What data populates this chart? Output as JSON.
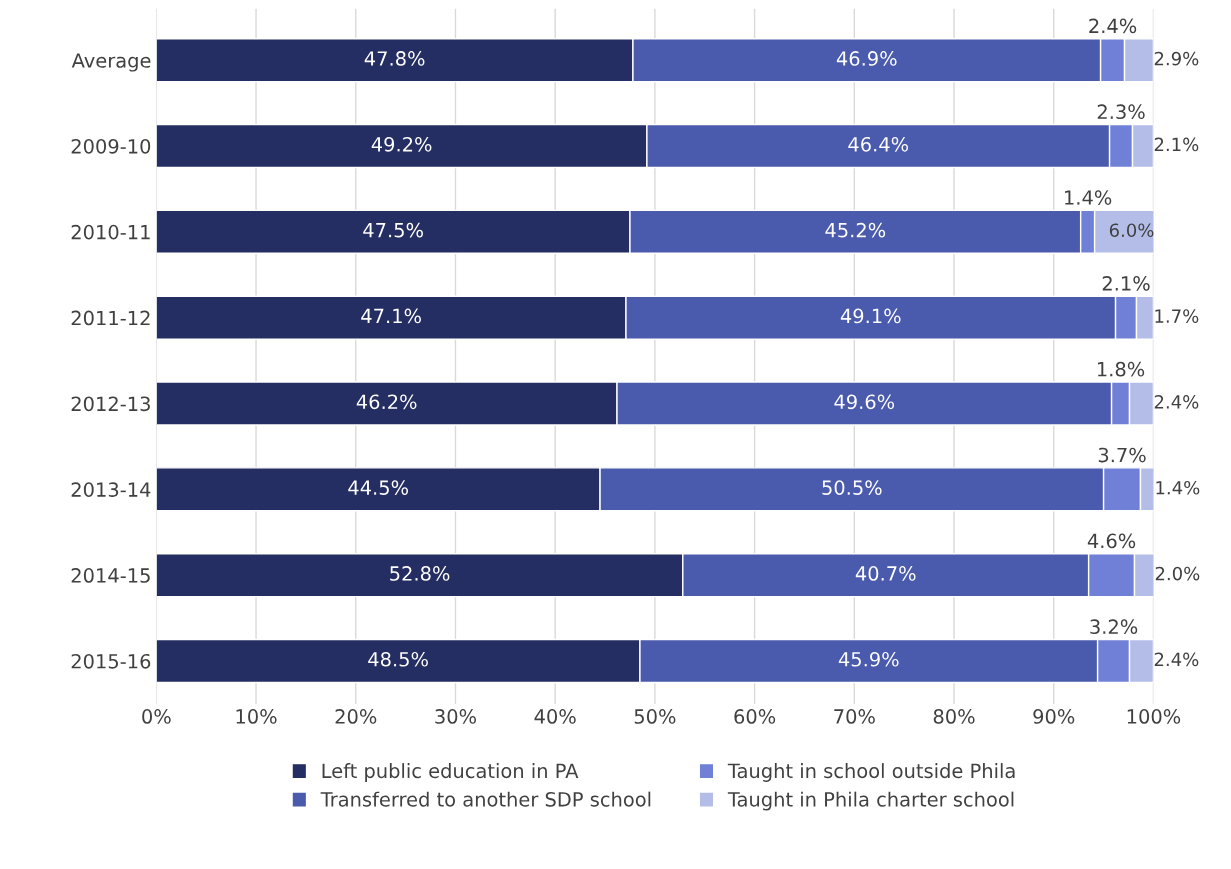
{
  "chart_data": {
    "type": "bar",
    "orientation": "horizontal",
    "stacked": true,
    "categories": [
      "Average",
      "2009-10",
      "2010-11",
      "2011-12",
      "2012-13",
      "2013-14",
      "2014-15",
      "2015-16"
    ],
    "series": [
      {
        "name": "Left public education in PA",
        "color": "#252e62",
        "values": [
          47.8,
          49.2,
          47.5,
          47.1,
          46.2,
          44.5,
          52.8,
          48.5
        ],
        "value_labels": [
          "47.8%",
          "49.2%",
          "47.5%",
          "47.1%",
          "46.2%",
          "44.5%",
          "52.8%",
          "48.5%"
        ]
      },
      {
        "name": "Transferred to another SDP school",
        "color": "#4a5aad",
        "values": [
          46.9,
          46.4,
          45.2,
          49.1,
          49.6,
          50.5,
          40.7,
          45.9
        ],
        "value_labels": [
          "46.9%",
          "46.4%",
          "45.2%",
          "49.1%",
          "49.6%",
          "50.5%",
          "40.7%",
          "45.9%"
        ]
      },
      {
        "name": "Taught in school outside Phila",
        "color": "#7080d6",
        "values": [
          2.4,
          2.3,
          1.4,
          2.1,
          1.8,
          3.7,
          4.6,
          3.2
        ],
        "value_labels": [
          "2.4%",
          "2.3%",
          "1.4%",
          "2.1%",
          "1.8%",
          "3.7%",
          "4.6%",
          "3.2%"
        ]
      },
      {
        "name": "Taught in Phila charter school",
        "color": "#b4bde8",
        "values": [
          2.9,
          2.1,
          6.0,
          1.7,
          2.4,
          1.4,
          2.0,
          2.4
        ],
        "value_labels": [
          "2.9%",
          "2.1%",
          "6.0%",
          "1.7%",
          "2.4%",
          "1.4%",
          "2.0%",
          "2.4%"
        ]
      }
    ],
    "xlim": [
      0,
      100
    ],
    "xticks": [
      {
        "value": 0,
        "label": "0%"
      },
      {
        "value": 10,
        "label": "10%"
      },
      {
        "value": 20,
        "label": "20%"
      },
      {
        "value": 30,
        "label": "30%"
      },
      {
        "value": 40,
        "label": "40%"
      },
      {
        "value": 50,
        "label": "50%"
      },
      {
        "value": 60,
        "label": "60%"
      },
      {
        "value": 70,
        "label": "70%"
      },
      {
        "value": 80,
        "label": "80%"
      },
      {
        "value": 90,
        "label": "90%"
      },
      {
        "value": 100,
        "label": "100%"
      }
    ],
    "grid": "x",
    "legend": "bottom"
  }
}
